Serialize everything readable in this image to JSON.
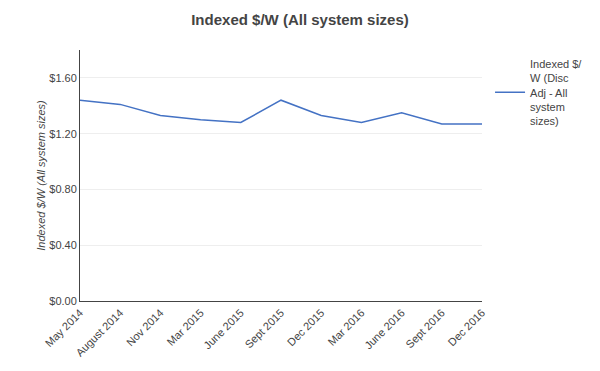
{
  "chart_data": {
    "type": "line",
    "title": "Indexed $/W (All system sizes)",
    "ylabel": "Indexed $/W (All system sizes)",
    "categories": [
      "May 2014",
      "August 2014",
      "Nov 2014",
      "Mar 2015",
      "June 2015",
      "Sept 2015",
      "Dec 2015",
      "Mar 2016",
      "June 2016",
      "Sept 2016",
      "Dec 2016"
    ],
    "series": [
      {
        "name": "Indexed $/\nW (Disc\nAdj - All\nsystem\nsizes)",
        "color": "#4472C4",
        "values": [
          1.44,
          1.41,
          1.33,
          1.3,
          1.28,
          1.44,
          1.33,
          1.28,
          1.35,
          1.27,
          1.27
        ]
      }
    ],
    "ylim": [
      0.0,
      1.8
    ],
    "yticks": [
      {
        "value": 0.0,
        "label": "$0.00"
      },
      {
        "value": 0.4,
        "label": "$0.40"
      },
      {
        "value": 0.8,
        "label": "$0.80"
      },
      {
        "value": 1.2,
        "label": "$1.20"
      },
      {
        "value": 1.6,
        "label": "$1.60"
      }
    ],
    "grid": true,
    "legend": "upper right"
  }
}
